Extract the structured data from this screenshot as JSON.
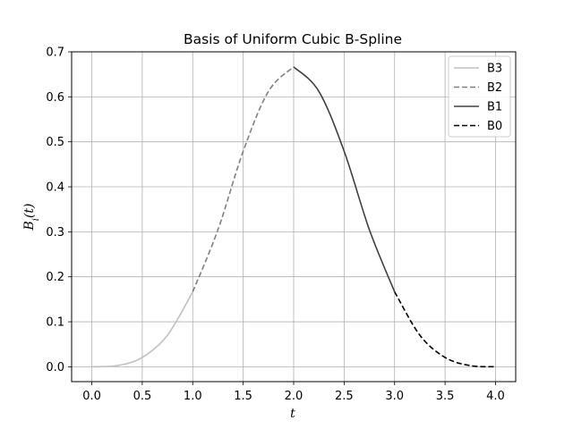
{
  "chart_data": {
    "type": "line",
    "title": "Basis of Uniform Cubic B-Spline",
    "xlabel": "t",
    "ylabel": "B_i(t)",
    "xlim": [
      -0.2,
      4.2
    ],
    "ylim": [
      -0.033,
      0.7
    ],
    "xticks": [
      0.0,
      0.5,
      1.0,
      1.5,
      2.0,
      2.5,
      3.0,
      3.5,
      4.0
    ],
    "xtick_labels": [
      "0.0",
      "0.5",
      "1.0",
      "1.5",
      "2.0",
      "2.5",
      "3.0",
      "3.5",
      "4.0"
    ],
    "yticks": [
      0.0,
      0.1,
      0.2,
      0.3,
      0.4,
      0.5,
      0.6,
      0.7
    ],
    "ytick_labels": [
      "0.0",
      "0.1",
      "0.2",
      "0.3",
      "0.4",
      "0.5",
      "0.6",
      "0.7"
    ],
    "grid": true,
    "legend_position": "top-right",
    "series": [
      {
        "name": "B3",
        "color": "#c0c0c0",
        "dash": "solid",
        "x": [
          0.0,
          0.25,
          0.5,
          0.75,
          1.0
        ],
        "y": [
          0.0,
          0.0026,
          0.0208,
          0.0703,
          0.1667
        ]
      },
      {
        "name": "B2",
        "color": "#808080",
        "dash": "dashed",
        "x": [
          1.0,
          1.25,
          1.5,
          1.75,
          2.0
        ],
        "y": [
          0.1667,
          0.3047,
          0.4792,
          0.612,
          0.6667
        ]
      },
      {
        "name": "B1",
        "color": "#404040",
        "dash": "solid",
        "x": [
          2.0,
          2.25,
          2.5,
          2.75,
          3.0
        ],
        "y": [
          0.6667,
          0.612,
          0.4792,
          0.3047,
          0.1667
        ]
      },
      {
        "name": "B0",
        "color": "#000000",
        "dash": "dashed",
        "x": [
          3.0,
          3.25,
          3.5,
          3.75,
          4.0
        ],
        "y": [
          0.1667,
          0.0703,
          0.0208,
          0.0026,
          0.0
        ]
      }
    ]
  }
}
